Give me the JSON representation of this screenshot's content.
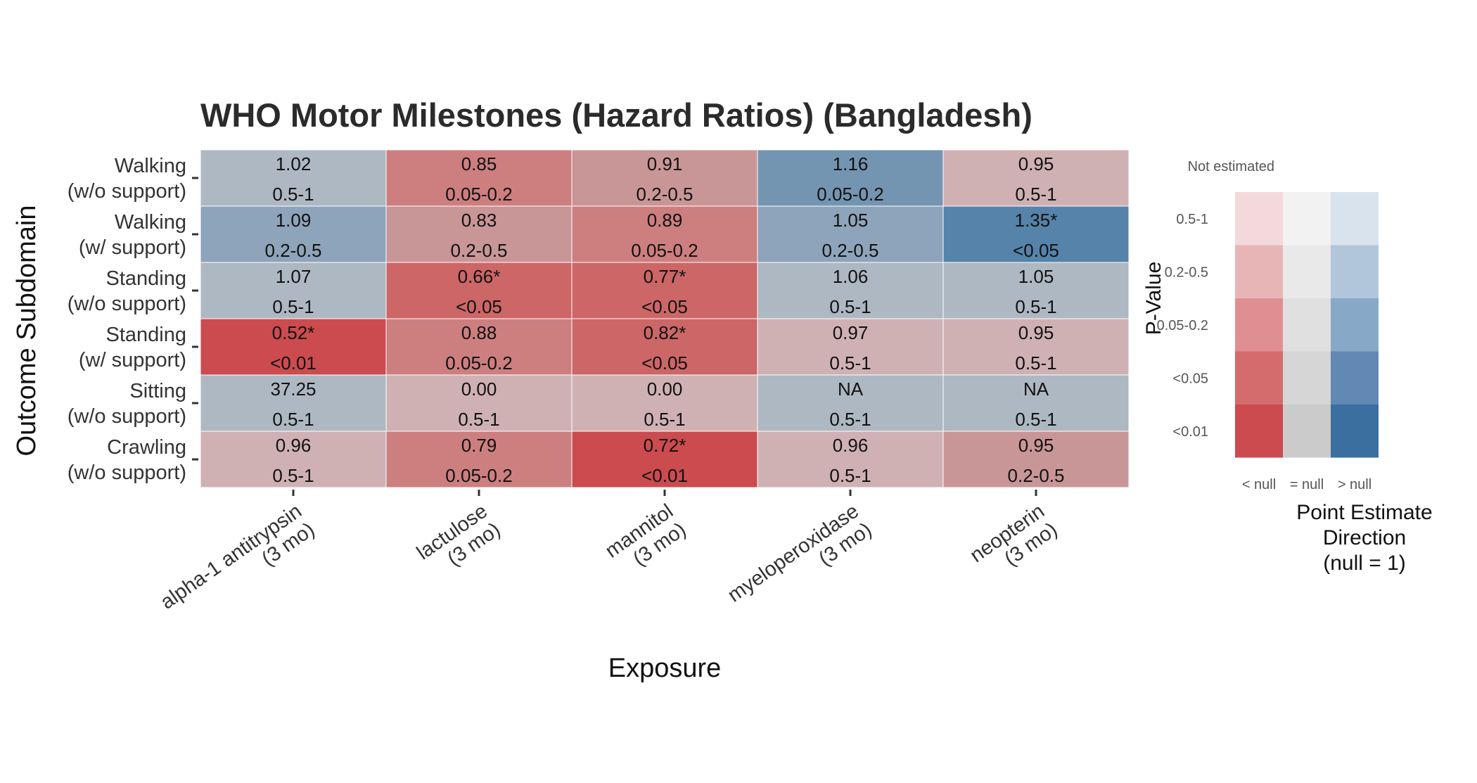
{
  "chart_data": {
    "type": "heatmap",
    "title": "WHO Motor Milestones (Hazard Ratios) (Bangladesh)",
    "xlabel": "Exposure",
    "ylabel": "Outcome Subdomain",
    "x_categories": [
      [
        "alpha-1 antitrypsin",
        "(3 mo)"
      ],
      [
        "lactulose",
        "(3 mo)"
      ],
      [
        "mannitol",
        "(3 mo)"
      ],
      [
        "myeloperoxidase",
        "(3 mo)"
      ],
      [
        "neopterin",
        "(3 mo)"
      ]
    ],
    "y_categories": [
      [
        "Walking",
        "(w/o support)"
      ],
      [
        "Walking",
        "(w/ support)"
      ],
      [
        "Standing",
        "(w/o support)"
      ],
      [
        "Standing",
        "(w/ support)"
      ],
      [
        "Sitting",
        "(w/o support)"
      ],
      [
        "Crawling",
        "(w/o support)"
      ]
    ],
    "cells": [
      [
        {
          "estimate": "1.02",
          "pvalue": "0.5-1",
          "color": "#aeb8c2"
        },
        {
          "estimate": "0.85",
          "pvalue": "0.05-0.2",
          "color": "#cd7f80"
        },
        {
          "estimate": "0.91",
          "pvalue": "0.2-0.5",
          "color": "#c99698"
        },
        {
          "estimate": "1.16",
          "pvalue": "0.05-0.2",
          "color": "#7495b1"
        },
        {
          "estimate": "0.95",
          "pvalue": "0.5-1",
          "color": "#cfb1b4"
        }
      ],
      [
        {
          "estimate": "1.09",
          "pvalue": "0.2-0.5",
          "color": "#8ea4ba"
        },
        {
          "estimate": "0.83",
          "pvalue": "0.2-0.5",
          "color": "#c99698"
        },
        {
          "estimate": "0.89",
          "pvalue": "0.05-0.2",
          "color": "#cd7f80"
        },
        {
          "estimate": "1.05",
          "pvalue": "0.2-0.5",
          "color": "#8ea4ba"
        },
        {
          "estimate": "1.35*",
          "pvalue": "<0.05",
          "color": "#5583aa"
        }
      ],
      [
        {
          "estimate": "1.07",
          "pvalue": "0.5-1",
          "color": "#aeb8c2"
        },
        {
          "estimate": "0.66*",
          "pvalue": "<0.05",
          "color": "#cc6667"
        },
        {
          "estimate": "0.77*",
          "pvalue": "<0.05",
          "color": "#cc6667"
        },
        {
          "estimate": "1.06",
          "pvalue": "0.5-1",
          "color": "#aeb8c2"
        },
        {
          "estimate": "1.05",
          "pvalue": "0.5-1",
          "color": "#aeb8c2"
        }
      ],
      [
        {
          "estimate": "0.52*",
          "pvalue": "<0.01",
          "color": "#cb4b4e"
        },
        {
          "estimate": "0.88",
          "pvalue": "0.05-0.2",
          "color": "#cd7f80"
        },
        {
          "estimate": "0.82*",
          "pvalue": "<0.05",
          "color": "#cc6667"
        },
        {
          "estimate": "0.97",
          "pvalue": "0.5-1",
          "color": "#cfb1b4"
        },
        {
          "estimate": "0.95",
          "pvalue": "0.5-1",
          "color": "#cfb1b4"
        }
      ],
      [
        {
          "estimate": "37.25",
          "pvalue": "0.5-1",
          "color": "#aeb8c2"
        },
        {
          "estimate": "0.00",
          "pvalue": "0.5-1",
          "color": "#cfb1b4"
        },
        {
          "estimate": "0.00",
          "pvalue": "0.5-1",
          "color": "#cfb1b4"
        },
        {
          "estimate": "NA",
          "pvalue": "0.5-1",
          "color": "#aeb8c2"
        },
        {
          "estimate": "NA",
          "pvalue": "0.5-1",
          "color": "#aeb8c2"
        }
      ],
      [
        {
          "estimate": "0.96",
          "pvalue": "0.5-1",
          "color": "#cfb1b4"
        },
        {
          "estimate": "0.79",
          "pvalue": "0.05-0.2",
          "color": "#cd7f80"
        },
        {
          "estimate": "0.72*",
          "pvalue": "<0.01",
          "color": "#cb4b4e"
        },
        {
          "estimate": "0.96",
          "pvalue": "0.5-1",
          "color": "#cfb1b4"
        },
        {
          "estimate": "0.95",
          "pvalue": "0.2-0.5",
          "color": "#c99698"
        }
      ]
    ],
    "legend": {
      "pvalue_title": "P-Value",
      "not_estimated": "Not estimated",
      "pvalue_levels": [
        "0.5-1",
        "0.2-0.5",
        "0.05-0.2",
        "<0.05",
        "<0.01"
      ],
      "direction_levels": [
        "< null",
        "= null",
        "> null"
      ],
      "direction_title": [
        "Point Estimate",
        "Direction",
        "(null = 1)"
      ],
      "colors": [
        [
          "#f3d9db",
          "#f2f2f2",
          "#d9e3ed"
        ],
        [
          "#e8b5b7",
          "#e9e9e9",
          "#b1c6db"
        ],
        [
          "#df8f92",
          "#e0e0e0",
          "#88a8c8"
        ],
        [
          "#d46b6d",
          "#d6d6d6",
          "#6189b4"
        ],
        [
          "#cb4b4e",
          "#cbcbcb",
          "#3b6f9f"
        ]
      ]
    }
  }
}
